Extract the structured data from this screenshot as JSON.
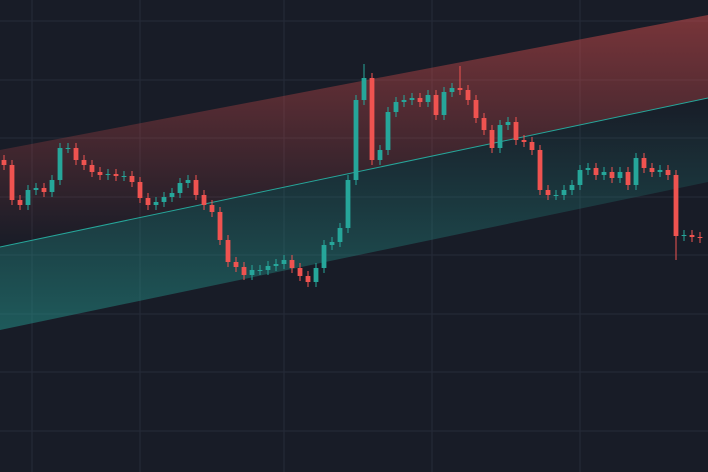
{
  "chart_data": {
    "type": "candlestick",
    "up_color": "#26a69a",
    "down_color": "#ef5350",
    "ylim": [
      0,
      472
    ],
    "yticks": [
      41,
      100,
      158,
      217,
      275,
      334,
      392,
      451
    ],
    "xlim": [
      -0.5,
      88
    ],
    "xticks": [
      3.5,
      17,
      35,
      53.5,
      72
    ],
    "grid": true,
    "channel": {
      "upper": [
        322,
        457
      ],
      "middle": [
        225,
        374
      ],
      "lower": [
        142,
        290
      ],
      "upper_color": "#ef5350",
      "middle_color": "#26a69a",
      "lower_color": "#26a69a"
    },
    "open": [
      312,
      307,
      272,
      267,
      282,
      284,
      280,
      292,
      324,
      324,
      312,
      307,
      300,
      297,
      298,
      296,
      296,
      290,
      274,
      267,
      270,
      275,
      279,
      289,
      292,
      277,
      267,
      260,
      232,
      210,
      205,
      197,
      202,
      202,
      206,
      208,
      212,
      204,
      196,
      190,
      204,
      227,
      230,
      244,
      292,
      372,
      394,
      312,
      322,
      360,
      370,
      372,
      374,
      370,
      377,
      357,
      380,
      384,
      382,
      372,
      354,
      342,
      324,
      347,
      350,
      332,
      330,
      322,
      282,
      277,
      277,
      282,
      287,
      302,
      304,
      297,
      300,
      294,
      300,
      287,
      314,
      304,
      300,
      302,
      297,
      236,
      237,
      235
    ],
    "high": [
      317,
      312,
      277,
      287,
      289,
      289,
      297,
      329,
      329,
      329,
      317,
      312,
      305,
      303,
      303,
      301,
      301,
      295,
      279,
      275,
      280,
      284,
      294,
      297,
      297,
      282,
      272,
      265,
      237,
      215,
      210,
      207,
      207,
      211,
      213,
      217,
      217,
      209,
      201,
      209,
      232,
      235,
      249,
      297,
      377,
      408,
      399,
      327,
      365,
      375,
      377,
      379,
      379,
      382,
      382,
      385,
      389,
      406,
      387,
      377,
      359,
      347,
      352,
      355,
      355,
      337,
      335,
      327,
      287,
      282,
      287,
      292,
      307,
      309,
      309,
      305,
      305,
      305,
      305,
      319,
      319,
      309,
      307,
      307,
      302,
      242,
      242,
      240
    ],
    "low": [
      302,
      267,
      262,
      262,
      277,
      275,
      275,
      287,
      319,
      307,
      302,
      295,
      292,
      292,
      291,
      291,
      285,
      269,
      262,
      262,
      265,
      270,
      274,
      284,
      272,
      262,
      255,
      227,
      205,
      200,
      192,
      192,
      197,
      197,
      201,
      203,
      199,
      191,
      185,
      185,
      199,
      222,
      225,
      239,
      287,
      367,
      307,
      307,
      317,
      355,
      365,
      367,
      365,
      365,
      352,
      352,
      375,
      377,
      367,
      349,
      337,
      319,
      319,
      342,
      327,
      325,
      317,
      277,
      272,
      272,
      272,
      277,
      282,
      297,
      292,
      292,
      289,
      289,
      282,
      282,
      299,
      295,
      295,
      292,
      212,
      231,
      230,
      229
    ],
    "close": [
      307,
      272,
      267,
      282,
      284,
      280,
      292,
      324,
      324,
      312,
      307,
      300,
      297,
      298,
      296,
      296,
      290,
      274,
      267,
      270,
      275,
      279,
      289,
      292,
      277,
      267,
      260,
      232,
      210,
      205,
      197,
      202,
      202,
      206,
      208,
      212,
      204,
      196,
      190,
      204,
      227,
      230,
      244,
      292,
      372,
      394,
      312,
      322,
      360,
      370,
      372,
      374,
      370,
      377,
      357,
      380,
      384,
      382,
      372,
      354,
      342,
      324,
      347,
      350,
      332,
      330,
      322,
      282,
      277,
      277,
      282,
      287,
      302,
      304,
      297,
      300,
      294,
      300,
      287,
      314,
      304,
      300,
      302,
      297,
      236,
      237,
      235,
      234
    ]
  }
}
